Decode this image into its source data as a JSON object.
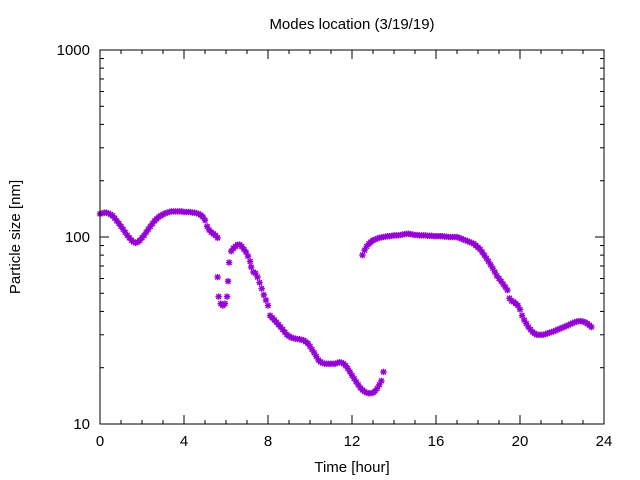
{
  "chart_data": {
    "type": "scatter",
    "title": "Modes location (3/19/19)",
    "xlabel": "Time [hour]",
    "ylabel": "Particle size [nm]",
    "xlim": [
      0,
      24
    ],
    "ylim": [
      10,
      1000
    ],
    "yscale": "log",
    "x_ticks": [
      0,
      4,
      8,
      12,
      16,
      20,
      24
    ],
    "x_tick_labels": [
      "0",
      "4",
      "8",
      "12",
      "16",
      "20",
      "24"
    ],
    "y_ticks": [
      10,
      100,
      1000
    ],
    "y_tick_labels": [
      "10",
      "100",
      "1000"
    ],
    "grid": false,
    "marker_color": "#9400d3",
    "series": [
      {
        "points": [
          [
            0.0,
            133
          ],
          [
            0.1,
            134
          ],
          [
            0.2,
            135
          ],
          [
            0.3,
            135
          ],
          [
            0.4,
            134
          ],
          [
            0.5,
            132
          ],
          [
            0.6,
            130
          ],
          [
            0.7,
            126
          ],
          [
            0.8,
            122
          ],
          [
            0.9,
            118
          ],
          [
            1.0,
            114
          ],
          [
            1.1,
            110
          ],
          [
            1.2,
            106
          ],
          [
            1.3,
            102
          ],
          [
            1.4,
            99
          ],
          [
            1.5,
            96
          ],
          [
            1.6,
            94
          ],
          [
            1.7,
            93
          ],
          [
            1.8,
            94
          ],
          [
            1.9,
            96
          ],
          [
            2.0,
            99
          ],
          [
            2.1,
            102
          ],
          [
            2.2,
            106
          ],
          [
            2.3,
            110
          ],
          [
            2.4,
            114
          ],
          [
            2.5,
            118
          ],
          [
            2.6,
            122
          ],
          [
            2.7,
            125
          ],
          [
            2.8,
            128
          ],
          [
            2.9,
            130
          ],
          [
            3.0,
            132
          ],
          [
            3.1,
            134
          ],
          [
            3.2,
            135
          ],
          [
            3.3,
            136
          ],
          [
            3.4,
            137
          ],
          [
            3.5,
            137
          ],
          [
            3.6,
            137
          ],
          [
            3.7,
            137
          ],
          [
            3.8,
            137
          ],
          [
            3.9,
            137
          ],
          [
            4.0,
            136
          ],
          [
            4.1,
            136
          ],
          [
            4.2,
            136
          ],
          [
            4.3,
            136
          ],
          [
            4.4,
            135
          ],
          [
            4.5,
            135
          ],
          [
            4.6,
            134
          ],
          [
            4.7,
            133
          ],
          [
            4.8,
            131
          ],
          [
            4.9,
            128
          ],
          [
            5.0,
            123
          ],
          [
            5.1,
            114
          ],
          [
            5.2,
            109
          ],
          [
            5.3,
            106
          ],
          [
            5.4,
            104
          ],
          [
            5.5,
            102
          ],
          [
            5.6,
            99
          ],
          [
            5.6,
            61
          ],
          [
            5.65,
            48
          ],
          [
            5.75,
            44
          ],
          [
            5.85,
            43
          ],
          [
            5.95,
            44
          ],
          [
            6.05,
            48
          ],
          [
            6.1,
            58
          ],
          [
            6.15,
            73
          ],
          [
            6.25,
            84
          ],
          [
            6.35,
            87
          ],
          [
            6.45,
            89
          ],
          [
            6.55,
            91
          ],
          [
            6.65,
            91
          ],
          [
            6.75,
            89
          ],
          [
            6.85,
            86
          ],
          [
            6.95,
            83
          ],
          [
            7.05,
            79
          ],
          [
            7.15,
            74
          ],
          [
            7.2,
            69
          ],
          [
            7.3,
            65
          ],
          [
            7.4,
            64
          ],
          [
            7.5,
            61
          ],
          [
            7.6,
            57
          ],
          [
            7.7,
            53
          ],
          [
            7.8,
            49
          ],
          [
            7.9,
            46
          ],
          [
            8.0,
            43
          ],
          [
            8.1,
            38
          ],
          [
            8.2,
            37
          ],
          [
            8.3,
            36
          ],
          [
            8.4,
            35
          ],
          [
            8.5,
            34
          ],
          [
            8.6,
            33
          ],
          [
            8.7,
            32
          ],
          [
            8.8,
            31
          ],
          [
            8.9,
            30
          ],
          [
            9.0,
            29.5
          ],
          [
            9.1,
            29
          ],
          [
            9.2,
            28.8
          ],
          [
            9.3,
            28.6
          ],
          [
            9.4,
            28.5
          ],
          [
            9.5,
            28.4
          ],
          [
            9.6,
            28.2
          ],
          [
            9.7,
            28
          ],
          [
            9.8,
            27.5
          ],
          [
            9.9,
            27
          ],
          [
            10.0,
            26
          ],
          [
            10.1,
            25
          ],
          [
            10.2,
            24
          ],
          [
            10.3,
            23
          ],
          [
            10.4,
            22
          ],
          [
            10.5,
            21.5
          ],
          [
            10.6,
            21.2
          ],
          [
            10.7,
            21
          ],
          [
            10.8,
            21
          ],
          [
            10.9,
            21
          ],
          [
            11.0,
            21
          ],
          [
            11.1,
            21
          ],
          [
            11.2,
            21
          ],
          [
            11.3,
            21.2
          ],
          [
            11.4,
            21.4
          ],
          [
            11.5,
            21.3
          ],
          [
            11.6,
            21
          ],
          [
            11.7,
            20.5
          ],
          [
            11.8,
            19.8
          ],
          [
            11.9,
            19
          ],
          [
            12.0,
            18.2
          ],
          [
            12.1,
            17.5
          ],
          [
            12.2,
            16.8
          ],
          [
            12.3,
            16.2
          ],
          [
            12.4,
            15.6
          ],
          [
            12.5,
            15.2
          ],
          [
            12.6,
            14.9
          ],
          [
            12.7,
            14.7
          ],
          [
            12.8,
            14.6
          ],
          [
            12.9,
            14.6
          ],
          [
            13.0,
            14.7
          ],
          [
            13.1,
            15
          ],
          [
            13.2,
            15.5
          ],
          [
            13.3,
            16.2
          ],
          [
            13.4,
            17
          ],
          [
            13.5,
            19
          ]
        ]
      },
      {
        "points": [
          [
            12.5,
            80
          ],
          [
            12.6,
            85
          ],
          [
            12.7,
            89
          ],
          [
            12.8,
            92
          ],
          [
            12.9,
            94
          ],
          [
            13.0,
            96
          ],
          [
            13.1,
            97
          ],
          [
            13.2,
            98
          ],
          [
            13.3,
            99
          ],
          [
            13.4,
            99.5
          ],
          [
            13.5,
            100
          ],
          [
            13.6,
            100.5
          ],
          [
            13.7,
            101
          ],
          [
            13.8,
            101
          ],
          [
            13.9,
            101.5
          ],
          [
            14.0,
            102
          ],
          [
            14.1,
            102
          ],
          [
            14.2,
            102
          ],
          [
            14.3,
            102.5
          ],
          [
            14.4,
            103
          ],
          [
            14.5,
            103.5
          ],
          [
            14.6,
            104
          ],
          [
            14.7,
            104
          ],
          [
            14.8,
            103.5
          ],
          [
            14.9,
            103
          ],
          [
            15.0,
            102.5
          ],
          [
            15.1,
            102.5
          ],
          [
            15.2,
            102
          ],
          [
            15.3,
            102
          ],
          [
            15.4,
            102
          ],
          [
            15.5,
            102
          ],
          [
            15.6,
            101.5
          ],
          [
            15.7,
            101.5
          ],
          [
            15.8,
            101.5
          ],
          [
            15.9,
            101
          ],
          [
            16.0,
            101
          ],
          [
            16.1,
            101
          ],
          [
            16.2,
            101
          ],
          [
            16.3,
            101
          ],
          [
            16.4,
            100.5
          ],
          [
            16.5,
            100.5
          ],
          [
            16.6,
            100
          ],
          [
            16.7,
            100
          ],
          [
            16.8,
            100
          ],
          [
            16.9,
            100
          ],
          [
            17.0,
            100
          ],
          [
            17.1,
            99
          ],
          [
            17.2,
            98
          ],
          [
            17.3,
            97
          ],
          [
            17.4,
            96
          ],
          [
            17.5,
            95
          ],
          [
            17.6,
            94
          ],
          [
            17.7,
            93
          ],
          [
            17.8,
            92
          ],
          [
            17.9,
            90
          ],
          [
            18.0,
            88
          ],
          [
            18.1,
            86
          ],
          [
            18.2,
            83
          ],
          [
            18.3,
            80
          ],
          [
            18.4,
            77
          ],
          [
            18.5,
            74
          ],
          [
            18.6,
            71
          ],
          [
            18.7,
            68
          ],
          [
            18.8,
            65
          ],
          [
            18.9,
            62
          ],
          [
            19.0,
            60
          ],
          [
            19.1,
            58
          ],
          [
            19.2,
            56
          ],
          [
            19.3,
            54
          ],
          [
            19.4,
            52
          ],
          [
            19.5,
            47
          ],
          [
            19.6,
            45.5
          ],
          [
            19.7,
            45
          ],
          [
            19.8,
            44
          ],
          [
            19.9,
            43
          ],
          [
            20.0,
            41
          ],
          [
            20.1,
            38
          ],
          [
            20.2,
            36
          ],
          [
            20.3,
            34.5
          ],
          [
            20.4,
            33
          ],
          [
            20.5,
            32
          ],
          [
            20.6,
            31
          ],
          [
            20.7,
            30.5
          ],
          [
            20.8,
            30
          ],
          [
            20.9,
            30
          ],
          [
            21.0,
            30
          ],
          [
            21.1,
            30
          ],
          [
            21.2,
            30.2
          ],
          [
            21.3,
            30.5
          ],
          [
            21.4,
            30.8
          ],
          [
            21.5,
            31
          ],
          [
            21.6,
            31.3
          ],
          [
            21.7,
            31.6
          ],
          [
            21.8,
            32
          ],
          [
            21.9,
            32.3
          ],
          [
            22.0,
            32.7
          ],
          [
            22.1,
            33
          ],
          [
            22.2,
            33.4
          ],
          [
            22.3,
            33.8
          ],
          [
            22.4,
            34.2
          ],
          [
            22.5,
            34.6
          ],
          [
            22.6,
            35
          ],
          [
            22.7,
            35.3
          ],
          [
            22.8,
            35.5
          ],
          [
            22.9,
            35.5
          ],
          [
            23.0,
            35.3
          ],
          [
            23.1,
            35
          ],
          [
            23.2,
            34.5
          ],
          [
            23.3,
            33.8
          ],
          [
            23.4,
            33
          ]
        ]
      }
    ]
  }
}
